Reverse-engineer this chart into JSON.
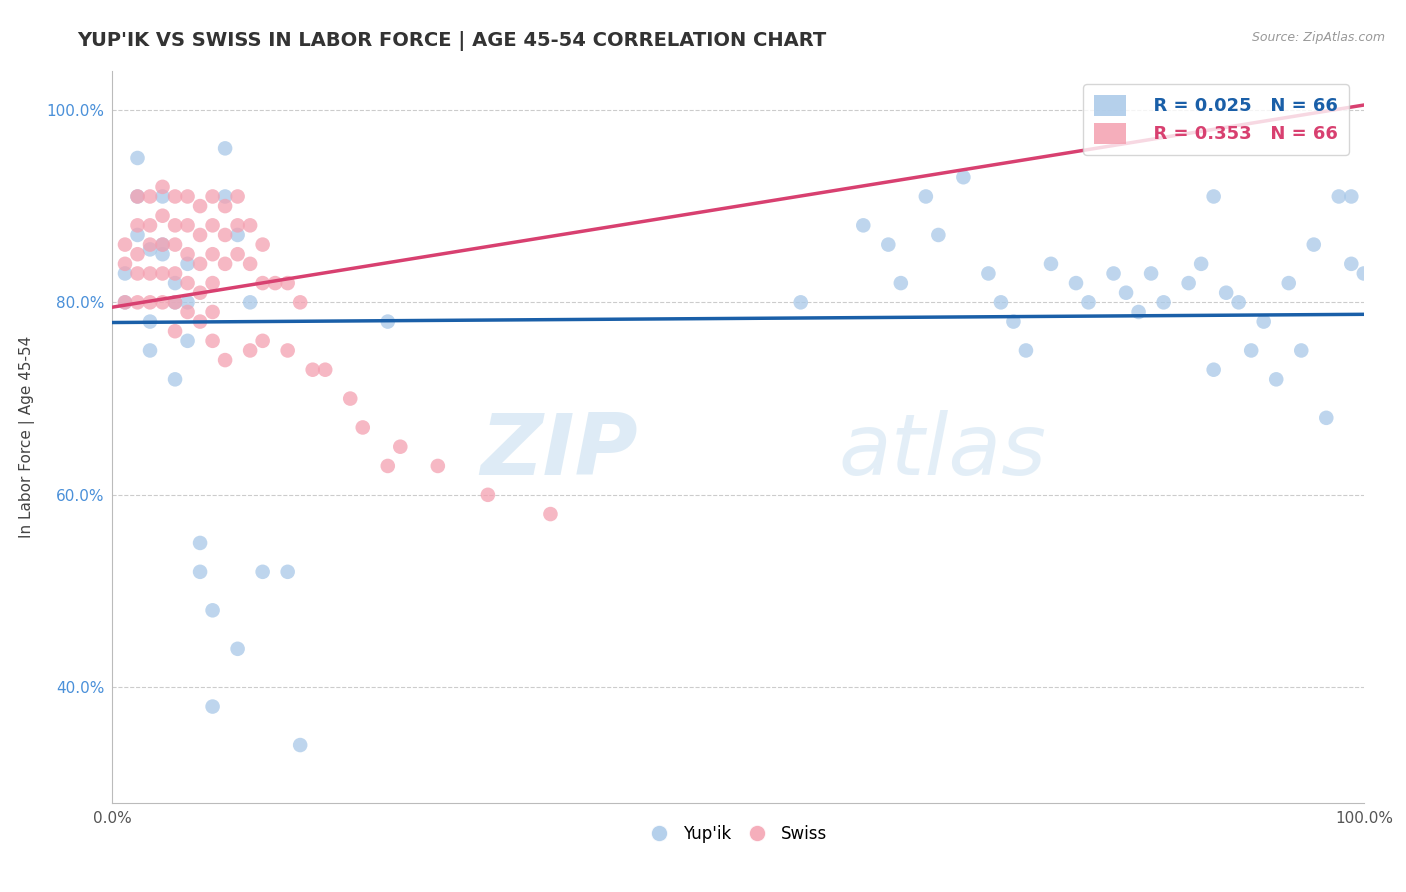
{
  "title": "YUP'IK VS SWISS IN LABOR FORCE | AGE 45-54 CORRELATION CHART",
  "source_text": "Source: ZipAtlas.com",
  "ylabel": "In Labor Force | Age 45-54",
  "xlim": [
    0.0,
    1.0
  ],
  "ylim": [
    0.28,
    1.04
  ],
  "yticks": [
    0.4,
    0.6,
    0.8,
    1.0
  ],
  "ytick_labels": [
    "40.0%",
    "60.0%",
    "80.0%",
    "100.0%"
  ],
  "xticks": [
    0.0,
    0.2,
    0.4,
    0.6,
    0.8,
    1.0
  ],
  "xtick_labels": [
    "0.0%",
    "",
    "",
    "",
    "",
    "100.0%"
  ],
  "legend_R_blue": "R = 0.025",
  "legend_N_blue": "N = 66",
  "legend_R_pink": "R = 0.353",
  "legend_N_pink": "N = 66",
  "blue_color": "#a8c8e8",
  "pink_color": "#f4a0b0",
  "blue_line_color": "#1a5fa8",
  "pink_line_color": "#d84070",
  "watermark_zip": "ZIP",
  "watermark_atlas": "atlas",
  "background_color": "#ffffff",
  "grid_color": "#cccccc",
  "ytick_color": "#4a90d9",
  "blue_x": [
    0.01,
    0.01,
    0.02,
    0.02,
    0.02,
    0.03,
    0.03,
    0.03,
    0.04,
    0.04,
    0.04,
    0.05,
    0.05,
    0.05,
    0.06,
    0.06,
    0.06,
    0.07,
    0.07,
    0.08,
    0.08,
    0.09,
    0.09,
    0.1,
    0.1,
    0.11,
    0.12,
    0.14,
    0.15,
    0.22,
    0.55,
    0.6,
    0.62,
    0.63,
    0.65,
    0.66,
    0.68,
    0.7,
    0.71,
    0.72,
    0.73,
    0.75,
    0.77,
    0.78,
    0.8,
    0.81,
    0.82,
    0.83,
    0.84,
    0.86,
    0.87,
    0.88,
    0.88,
    0.89,
    0.9,
    0.91,
    0.92,
    0.93,
    0.94,
    0.95,
    0.96,
    0.97,
    0.98,
    0.99,
    0.99,
    1.0
  ],
  "blue_y": [
    0.83,
    0.8,
    0.95,
    0.91,
    0.87,
    0.855,
    0.78,
    0.75,
    0.86,
    0.91,
    0.85,
    0.82,
    0.8,
    0.72,
    0.84,
    0.8,
    0.76,
    0.55,
    0.52,
    0.48,
    0.38,
    0.96,
    0.91,
    0.87,
    0.44,
    0.8,
    0.52,
    0.52,
    0.34,
    0.78,
    0.8,
    0.88,
    0.86,
    0.82,
    0.91,
    0.87,
    0.93,
    0.83,
    0.8,
    0.78,
    0.75,
    0.84,
    0.82,
    0.8,
    0.83,
    0.81,
    0.79,
    0.83,
    0.8,
    0.82,
    0.84,
    0.91,
    0.73,
    0.81,
    0.8,
    0.75,
    0.78,
    0.72,
    0.82,
    0.75,
    0.86,
    0.68,
    0.91,
    0.91,
    0.84,
    0.83
  ],
  "pink_x": [
    0.01,
    0.01,
    0.01,
    0.02,
    0.02,
    0.02,
    0.02,
    0.02,
    0.03,
    0.03,
    0.03,
    0.03,
    0.03,
    0.04,
    0.04,
    0.04,
    0.04,
    0.04,
    0.05,
    0.05,
    0.05,
    0.05,
    0.05,
    0.05,
    0.06,
    0.06,
    0.06,
    0.06,
    0.06,
    0.07,
    0.07,
    0.07,
    0.07,
    0.07,
    0.08,
    0.08,
    0.08,
    0.08,
    0.08,
    0.08,
    0.09,
    0.09,
    0.09,
    0.09,
    0.1,
    0.1,
    0.1,
    0.11,
    0.11,
    0.11,
    0.12,
    0.12,
    0.12,
    0.13,
    0.14,
    0.14,
    0.15,
    0.16,
    0.17,
    0.19,
    0.2,
    0.22,
    0.23,
    0.26,
    0.3,
    0.35
  ],
  "pink_y": [
    0.86,
    0.84,
    0.8,
    0.91,
    0.88,
    0.85,
    0.83,
    0.8,
    0.91,
    0.88,
    0.86,
    0.83,
    0.8,
    0.92,
    0.89,
    0.86,
    0.83,
    0.8,
    0.91,
    0.88,
    0.86,
    0.83,
    0.8,
    0.77,
    0.91,
    0.88,
    0.85,
    0.82,
    0.79,
    0.9,
    0.87,
    0.84,
    0.81,
    0.78,
    0.91,
    0.88,
    0.85,
    0.82,
    0.79,
    0.76,
    0.9,
    0.87,
    0.84,
    0.74,
    0.91,
    0.88,
    0.85,
    0.88,
    0.84,
    0.75,
    0.86,
    0.82,
    0.76,
    0.82,
    0.82,
    0.75,
    0.8,
    0.73,
    0.73,
    0.7,
    0.67,
    0.63,
    0.65,
    0.63,
    0.6,
    0.58
  ]
}
